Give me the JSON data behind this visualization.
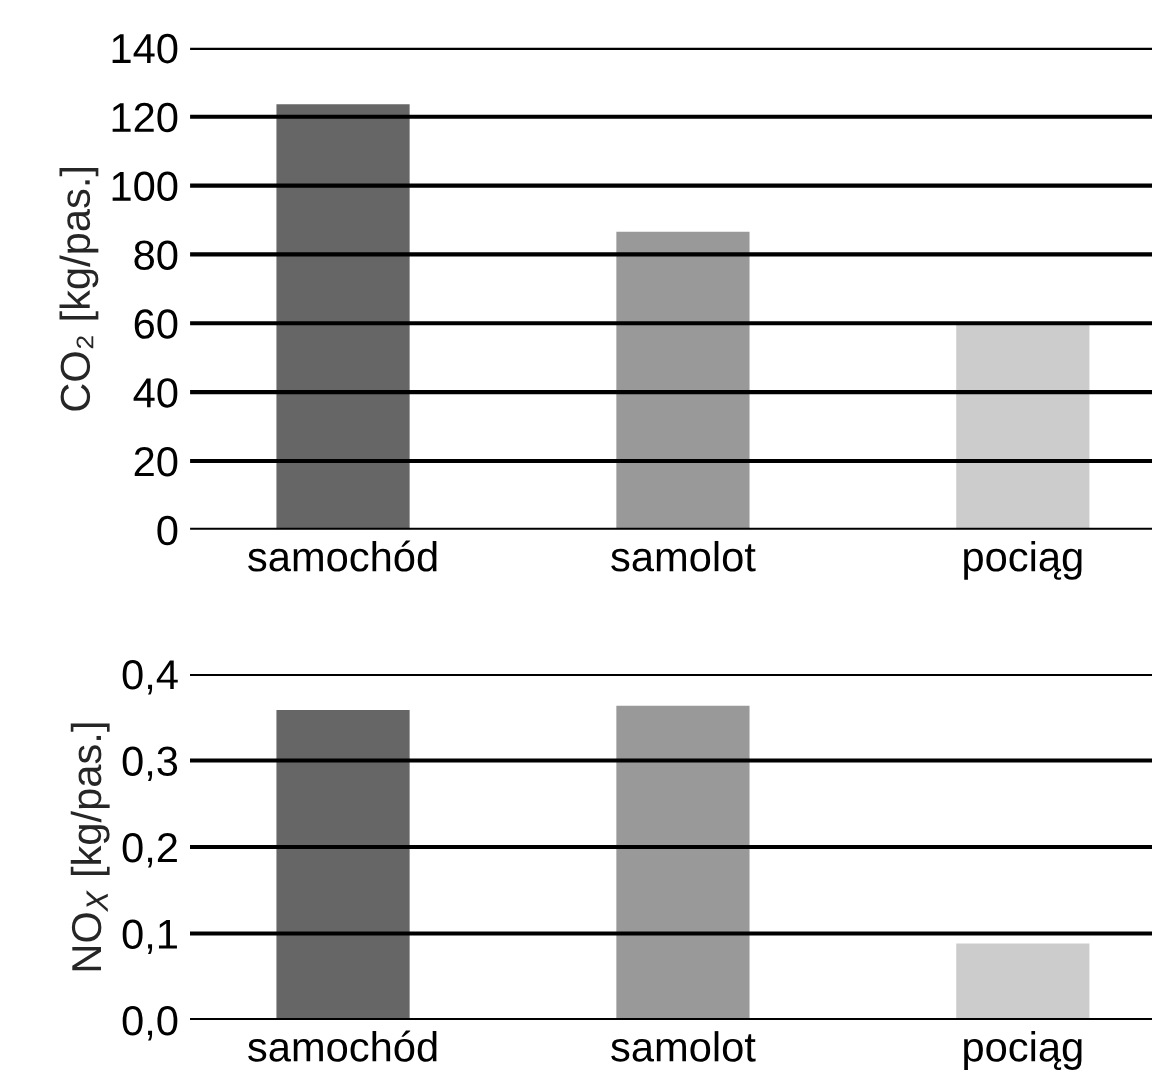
{
  "chart_data": [
    {
      "type": "bar",
      "ylabel": "CO₂ [kg/pas.]",
      "categories": [
        "samochód",
        "samolot",
        "pociąg"
      ],
      "values": [
        124,
        87,
        60
      ],
      "colors": [
        "#666666",
        "#999999",
        "#cccccc"
      ],
      "ylim": [
        0,
        140
      ],
      "yticks": [
        0,
        20,
        40,
        60,
        80,
        100,
        120,
        140
      ],
      "grid": "y",
      "legend": false
    },
    {
      "type": "bar",
      "ylabel": "NO$_{X}$ [kg/pas.]",
      "categories": [
        "samochód",
        "samolot",
        "pociąg"
      ],
      "values": [
        0.36,
        0.365,
        0.09
      ],
      "colors": [
        "#666666",
        "#999999",
        "#cccccc"
      ],
      "ylim": [
        0,
        0.4
      ],
      "yticks": [
        {
          "value": 0,
          "label": "0,0"
        },
        {
          "value": 0.1,
          "label": "0,1"
        },
        {
          "value": 0.2,
          "label": "0,2"
        },
        {
          "value": 0.3,
          "label": "0,3"
        },
        {
          "value": 0.4,
          "label": "0,4"
        }
      ],
      "grid": "y",
      "legend": false
    }
  ]
}
